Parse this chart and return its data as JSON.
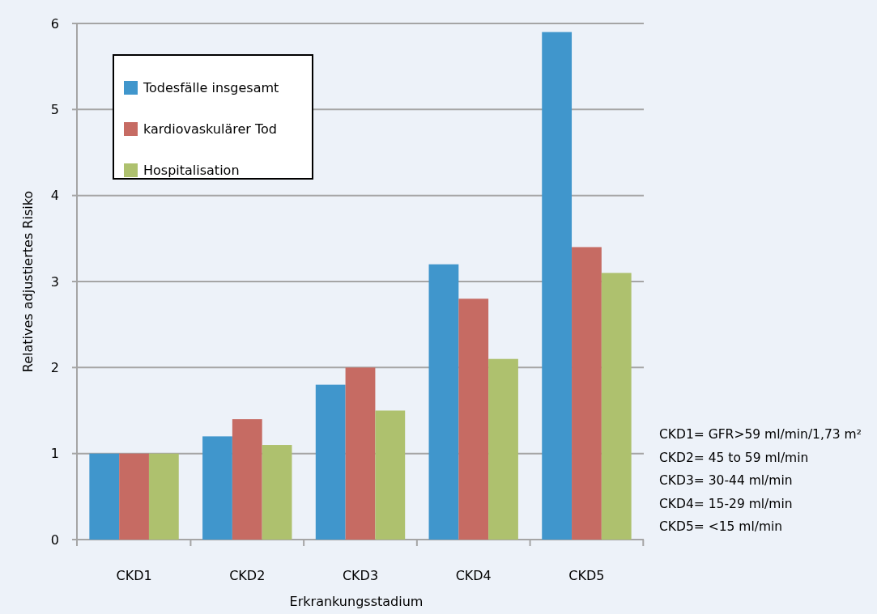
{
  "chart_data": {
    "type": "bar",
    "xlabel": "Erkrankungsstadium",
    "ylabel": "Relatives adjustiertes Risiko",
    "categories": [
      "CKD1",
      "CKD2",
      "CKD3",
      "CKD4",
      "CKD5"
    ],
    "series": [
      {
        "name": "Todesfälle insgesamt",
        "color": "#4096cc",
        "values": [
          1,
          1.2,
          1.8,
          3.2,
          5.9
        ]
      },
      {
        "name": "kardiovaskulärer Tod",
        "color": "#c66b63",
        "values": [
          1,
          1.4,
          2.0,
          2.8,
          3.4
        ]
      },
      {
        "name": "Hospitalisation",
        "color": "#aec16e",
        "values": [
          1,
          1.1,
          1.5,
          2.1,
          3.1
        ]
      }
    ],
    "ylim": [
      0,
      6
    ],
    "yticks": [
      0,
      1,
      2,
      3,
      4,
      5,
      6
    ],
    "grid": "y",
    "legend": "top left",
    "annotations": [
      "CKD1= GFR>59 ml/min/1,73 m²",
      "CKD2= 45 to 59 ml/min",
      "CKD3= 30-44 ml/min",
      "CKD4= 15-29 ml/min",
      "CKD5= <15 ml/min"
    ]
  }
}
